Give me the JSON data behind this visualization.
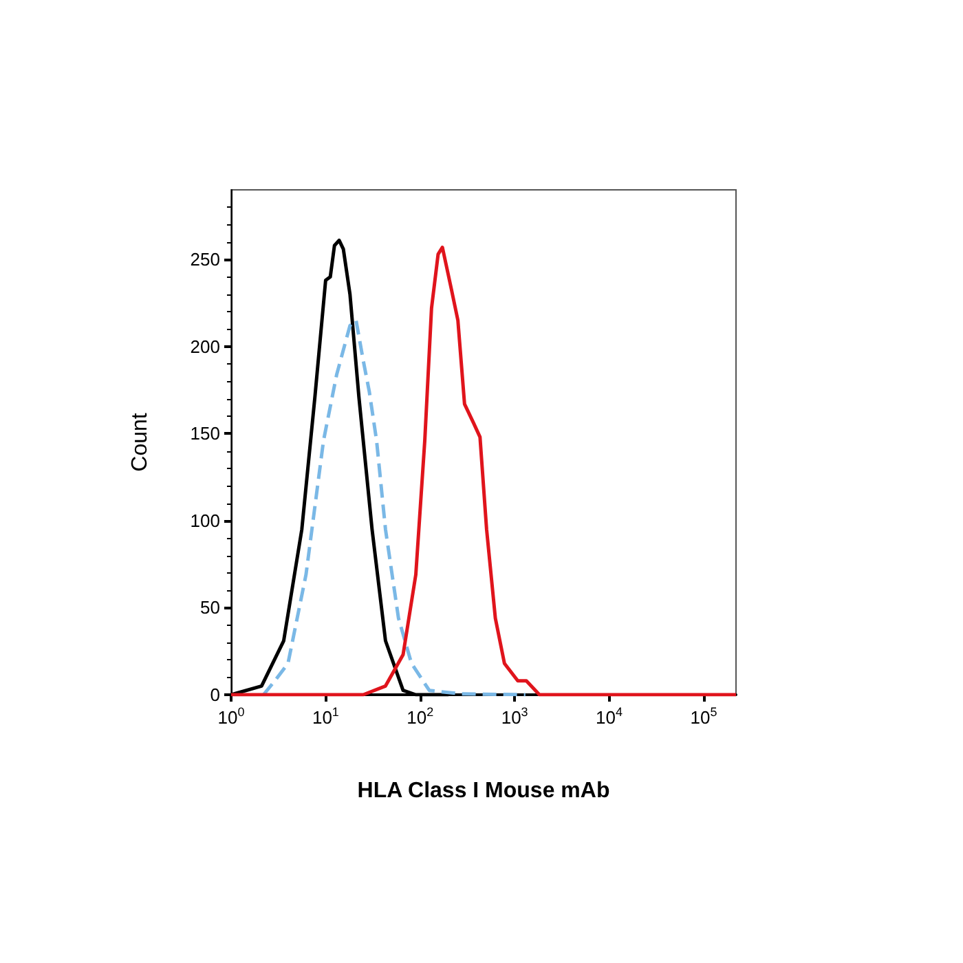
{
  "chart_data": {
    "type": "line",
    "xlabel": "HLA Class I Mouse mAb",
    "ylabel": "Count",
    "log": "x",
    "grid": false,
    "marker": "none",
    "xlim": [
      1,
      220000
    ],
    "xticks": [
      {
        "value": 1,
        "label": "10$^{0}$"
      },
      {
        "value": 10,
        "label": "10$^{1}$"
      },
      {
        "value": 100,
        "label": "10$^{2}$"
      },
      {
        "value": 1000,
        "label": "10$^{3}$"
      },
      {
        "value": 10000,
        "label": "10$^{4}$"
      },
      {
        "value": 100000,
        "label": "10$^{5}$"
      }
    ],
    "ylim": [
      0,
      290
    ],
    "yticks": [
      0,
      50,
      100,
      150,
      200,
      250
    ],
    "series": [
      {
        "color": "#000000",
        "line_style": "solid",
        "x": [
          1,
          2.1,
          3.6,
          5.6,
          7.7,
          10,
          11.2,
          12.4,
          13.9,
          15.4,
          18.1,
          22.5,
          31,
          43,
          66,
          90,
          200
        ],
        "values": [
          0,
          5,
          31,
          95,
          171,
          238,
          240,
          258,
          261,
          256,
          230,
          171,
          95,
          31,
          2.5,
          0,
          0
        ]
      },
      {
        "color": "#7ab8e6",
        "line_style": "dashed",
        "x": [
          2.2,
          2.9,
          4,
          6.2,
          9.5,
          13.1,
          18.1,
          21,
          25,
          29,
          34.6,
          43,
          59,
          81,
          125,
          268,
          1300
        ],
        "values": [
          0,
          8,
          18,
          69,
          146,
          184,
          212,
          215,
          192,
          174,
          146,
          95,
          44,
          18,
          2.5,
          0.5,
          0
        ]
      },
      {
        "color": "#e0141c",
        "line_style": "solid",
        "x": [
          1,
          25,
          43,
          66,
          90,
          112,
          132,
          155,
          172,
          214,
          251,
          295,
          368,
          430,
          505,
          625,
          780,
          1080,
          1330,
          1830,
          3140,
          220000
        ],
        "values": [
          0,
          0,
          5,
          23,
          69,
          146,
          222,
          253,
          257,
          233,
          215,
          167,
          156,
          148,
          95,
          44,
          18,
          8,
          8,
          0,
          0,
          0
        ]
      }
    ]
  }
}
